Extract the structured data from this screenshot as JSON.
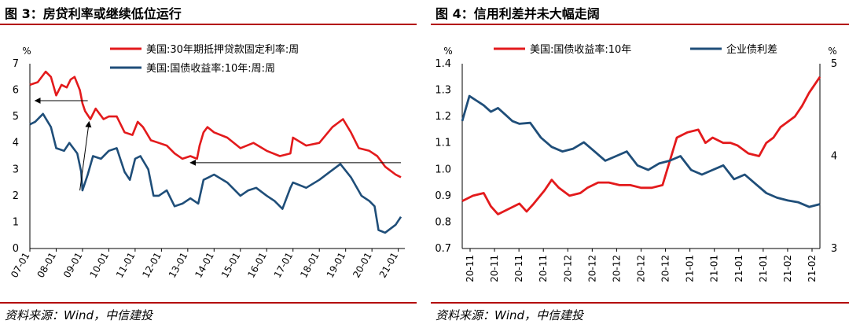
{
  "charts": [
    {
      "title": "图 3：房贷利率或继续低位运行",
      "source": "资料来源：Wind，中信建投",
      "chart_data": {
        "type": "line",
        "ylabel": "%",
        "ylim": [
          0,
          7
        ],
        "yticks": [
          "0",
          "1",
          "2",
          "3",
          "4",
          "5",
          "6",
          "7"
        ],
        "x_ticks": [
          "07-01",
          "08-01",
          "09-01",
          "10-01",
          "11-01",
          "12-01",
          "13-01",
          "14-01",
          "15-01",
          "16-01",
          "17-01",
          "18-01",
          "19-01",
          "20-01",
          "21-01"
        ],
        "xlim": [
          2007.0,
          2021.25
        ],
        "legend_position": "top-right",
        "series": [
          {
            "name": "美国:30年期抵押贷款固定利率:周",
            "color": "#e31a1c",
            "x": [
              2007.0,
              2007.3,
              2007.6,
              2007.8,
              2008.0,
              2008.2,
              2008.4,
              2008.55,
              2008.7,
              2008.9,
              2009.0,
              2009.1,
              2009.3,
              2009.5,
              2009.8,
              2010.0,
              2010.3,
              2010.6,
              2010.9,
              2011.1,
              2011.3,
              2011.6,
              2011.9,
              2012.2,
              2012.5,
              2012.8,
              2013.1,
              2013.35,
              2013.45,
              2013.6,
              2013.75,
              2014.0,
              2014.5,
              2015.0,
              2015.5,
              2016.0,
              2016.5,
              2016.9,
              2017.0,
              2017.5,
              2018.0,
              2018.5,
              2018.9,
              2019.2,
              2019.5,
              2019.9,
              2020.2,
              2020.5,
              2020.9,
              2021.1
            ],
            "values": [
              6.2,
              6.3,
              6.7,
              6.5,
              5.8,
              6.2,
              6.1,
              6.4,
              6.5,
              6.0,
              5.5,
              5.2,
              4.9,
              5.3,
              4.9,
              5.0,
              5.0,
              4.4,
              4.3,
              4.8,
              4.6,
              4.1,
              4.0,
              3.9,
              3.6,
              3.4,
              3.5,
              3.4,
              3.9,
              4.4,
              4.6,
              4.4,
              4.2,
              3.8,
              4.0,
              3.7,
              3.5,
              3.6,
              4.2,
              3.9,
              4.0,
              4.6,
              4.9,
              4.4,
              3.8,
              3.7,
              3.5,
              3.1,
              2.8,
              2.7
            ]
          },
          {
            "name": "美国:国债收益率:10年:周:周",
            "color": "#1f4e79",
            "x": [
              2007.0,
              2007.2,
              2007.5,
              2007.8,
              2008.0,
              2008.3,
              2008.5,
              2008.8,
              2008.95,
              2009.0,
              2009.2,
              2009.4,
              2009.7,
              2010.0,
              2010.3,
              2010.6,
              2010.8,
              2011.0,
              2011.2,
              2011.5,
              2011.7,
              2011.9,
              2012.2,
              2012.5,
              2012.8,
              2013.1,
              2013.4,
              2013.6,
              2013.8,
              2014.0,
              2014.5,
              2015.0,
              2015.3,
              2015.6,
              2016.0,
              2016.3,
              2016.6,
              2016.9,
              2017.0,
              2017.5,
              2018.0,
              2018.4,
              2018.8,
              2019.2,
              2019.6,
              2019.9,
              2020.1,
              2020.25,
              2020.5,
              2020.9,
              2021.1
            ],
            "values": [
              4.7,
              4.8,
              5.1,
              4.6,
              3.8,
              3.7,
              4.0,
              3.6,
              2.9,
              2.2,
              2.8,
              3.5,
              3.4,
              3.7,
              3.8,
              2.9,
              2.6,
              3.4,
              3.5,
              3.0,
              2.0,
              2.0,
              2.2,
              1.6,
              1.7,
              1.9,
              1.7,
              2.6,
              2.7,
              2.8,
              2.5,
              2.0,
              2.2,
              2.3,
              2.0,
              1.8,
              1.5,
              2.3,
              2.5,
              2.3,
              2.6,
              2.9,
              3.2,
              2.7,
              2.0,
              1.8,
              1.6,
              0.7,
              0.6,
              0.9,
              1.2
            ]
          }
        ],
        "annotations": [
          {
            "type": "arrow",
            "from": [
              2009.2,
              5.6
            ],
            "to": [
              2007.2,
              5.6
            ]
          },
          {
            "type": "arrow",
            "from": [
              2008.9,
              2.2
            ],
            "to": [
              2009.25,
              4.8
            ]
          },
          {
            "type": "arrow",
            "from": [
              2021.1,
              3.25
            ],
            "to": [
              2013.1,
              3.25
            ]
          }
        ]
      }
    },
    {
      "title": "图 4：信用利差并未大幅走阔",
      "source": "资料来源：Wind，中信建投",
      "chart_data": {
        "type": "line",
        "ylabel_left": "%",
        "ylabel_right": "%",
        "ylim_left": [
          0.7,
          1.4
        ],
        "ylim_right": [
          3,
          5
        ],
        "yticks_left": [
          "0.7",
          "0.8",
          "0.9",
          "1.0",
          "1.1",
          "1.2",
          "1.3",
          "1.4"
        ],
        "yticks_right": [
          "3",
          "4",
          "5"
        ],
        "x_ticks": [
          "20-11",
          "20-11",
          "20-11",
          "20-11",
          "20-12",
          "20-12",
          "20-12",
          "20-12",
          "20-12",
          "21-01",
          "21-01",
          "21-01",
          "21-01",
          "21-02",
          "21-02"
        ],
        "xlim": [
          0,
          100
        ],
        "legend_position": "top",
        "series": [
          {
            "name": "美国:国债收益率:10年",
            "color": "#e31a1c",
            "axis": "left",
            "x": [
              0,
              3,
              6,
              8,
              10,
              13,
              16,
              18,
              20,
              23,
              25,
              27,
              30,
              33,
              35,
              38,
              41,
              44,
              47,
              50,
              53,
              56,
              60,
              63,
              66,
              68,
              70,
              73,
              75,
              77,
              80,
              83,
              85,
              87,
              89,
              91,
              93,
              95,
              97,
              100
            ],
            "values": [
              0.88,
              0.9,
              0.91,
              0.86,
              0.83,
              0.85,
              0.87,
              0.84,
              0.87,
              0.92,
              0.96,
              0.93,
              0.9,
              0.91,
              0.93,
              0.95,
              0.95,
              0.94,
              0.94,
              0.93,
              0.93,
              0.94,
              1.12,
              1.14,
              1.15,
              1.1,
              1.12,
              1.1,
              1.1,
              1.09,
              1.06,
              1.05,
              1.1,
              1.12,
              1.16,
              1.18,
              1.2,
              1.24,
              1.29,
              1.35
            ]
          },
          {
            "name": "企业债利差",
            "color": "#1f4e79",
            "axis": "right",
            "x": [
              0,
              2,
              4,
              6,
              8,
              10,
              12,
              14,
              16,
              19,
              22,
              25,
              28,
              31,
              34,
              37,
              40,
              43,
              46,
              49,
              52,
              55,
              58,
              61,
              64,
              67,
              70,
              73,
              76,
              79,
              82,
              85,
              88,
              91,
              94,
              97,
              100
            ],
            "values": [
              4.38,
              4.65,
              4.6,
              4.55,
              4.48,
              4.52,
              4.45,
              4.38,
              4.35,
              4.36,
              4.2,
              4.1,
              4.05,
              4.08,
              4.15,
              4.05,
              3.95,
              4.0,
              4.05,
              3.9,
              3.85,
              3.92,
              3.95,
              4.0,
              3.85,
              3.8,
              3.85,
              3.9,
              3.75,
              3.8,
              3.7,
              3.6,
              3.55,
              3.52,
              3.5,
              3.45,
              3.48
            ]
          }
        ]
      }
    }
  ]
}
